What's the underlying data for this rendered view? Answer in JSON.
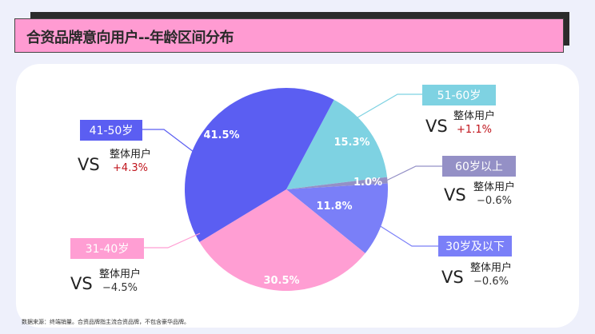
{
  "title": "合资品牌意向用户--年龄区间分布",
  "footnote": "数据来源：终端销量。合资品牌指主流合资品牌，不包含豪华品牌。",
  "chart_data": {
    "type": "pie",
    "title": "合资品牌意向用户--年龄区间分布",
    "slices": [
      {
        "label": "51-60岁",
        "value": 15.3,
        "value_label": "15.3%",
        "color": "#7ed2e2",
        "compare_label": "整体用户",
        "vs": "VS",
        "delta": "+1.1%",
        "delta_color": "#c0141c"
      },
      {
        "label": "60岁以上",
        "value": 1.0,
        "value_label": "1.0%",
        "color": "#9490c6",
        "compare_label": "整体用户",
        "vs": "VS",
        "delta": "−0.6%",
        "delta_color": "#333333"
      },
      {
        "label": "30岁及以下",
        "value": 11.8,
        "value_label": "11.8%",
        "color": "#7a7ff8",
        "compare_label": "整体用户",
        "vs": "VS",
        "delta": "−0.6%",
        "delta_color": "#333333"
      },
      {
        "label": "31-40岁",
        "value": 30.5,
        "value_label": "30.5%",
        "color": "#ff9ed3",
        "compare_label": "整体用户",
        "vs": "VS",
        "delta": "−4.5%",
        "delta_color": "#333333"
      },
      {
        "label": "41-50岁",
        "value": 41.5,
        "value_label": "41.5%",
        "color": "#5b5ef2",
        "compare_label": "整体用户",
        "vs": "VS",
        "delta": "+4.3%",
        "delta_color": "#c0141c"
      }
    ]
  }
}
